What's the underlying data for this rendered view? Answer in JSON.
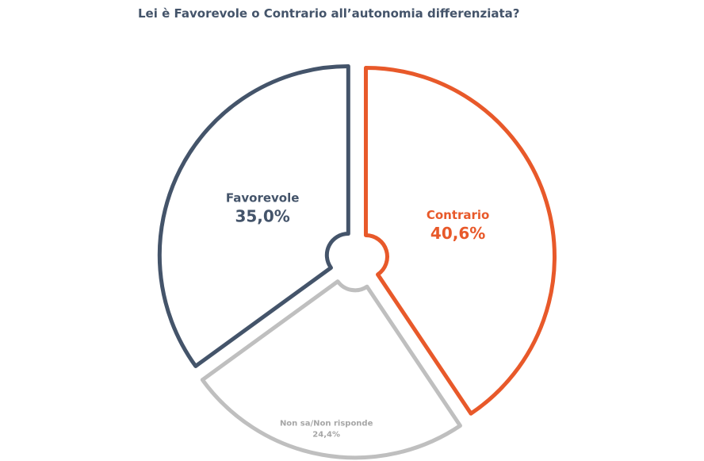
{
  "chart_data": {
    "type": "pie",
    "title": "Lei è Favorevole o Contrario all’autonomia differenziata?",
    "slices": [
      {
        "label": "Contrario",
        "value": 40.6,
        "display": "40,6%",
        "color": "#e8592a"
      },
      {
        "label": "Non sa/Non risponde",
        "value": 24.4,
        "display": "24,4%",
        "color": "#bfbfbf"
      },
      {
        "label": "Favorevole",
        "value": 35.0,
        "display": "35,0%",
        "color": "#44546a"
      }
    ]
  }
}
